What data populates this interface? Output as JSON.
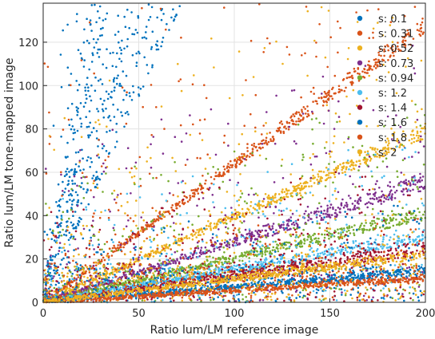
{
  "chart_data": {
    "type": "scatter",
    "xlabel": "Ratio lum/LM reference image",
    "ylabel": "Ratio lum/LM tone-mapped image",
    "xlim": [
      0,
      200
    ],
    "ylim": [
      0,
      138
    ],
    "xticks": [
      0,
      50,
      100,
      150,
      200
    ],
    "yticks": [
      0,
      20,
      40,
      60,
      80,
      100,
      120
    ],
    "grid": true,
    "legend_placement": "top-right",
    "series": [
      {
        "name": "s: 0.1",
        "color": "#0072BD",
        "slope_range": [
          1.9,
          6.0
        ],
        "trend_y_at_x200": 138
      },
      {
        "name": "s: 0.31",
        "color": "#D95319",
        "slope_range": [
          0.62,
          0.66
        ],
        "trend_y_at_x200": 130
      },
      {
        "name": "s: 0.52",
        "color": "#EDB120",
        "slope_range": [
          0.38,
          0.41
        ],
        "trend_y_at_x200": 80
      },
      {
        "name": "s: 0.73",
        "color": "#7E2F8E",
        "slope_range": [
          0.26,
          0.3
        ],
        "trend_y_at_x200": 56
      },
      {
        "name": "s: 0.94",
        "color": "#77AC30",
        "slope_range": [
          0.19,
          0.22
        ],
        "trend_y_at_x200": 42
      },
      {
        "name": "s: 1.2",
        "color": "#4DBEEE",
        "slope_range": [
          0.14,
          0.17
        ],
        "trend_y_at_x200": 32
      },
      {
        "name": "s: 1.4",
        "color": "#A2142F",
        "slope_range": [
          0.11,
          0.14
        ],
        "trend_y_at_x200": 26
      },
      {
        "name": "s: 1.6",
        "color": "#0072BD",
        "slope_range": [
          0.065,
          0.08
        ],
        "trend_y_at_x200": 15
      },
      {
        "name": "s: 1.8",
        "color": "#D95319",
        "slope_range": [
          0.05,
          0.06
        ],
        "trend_y_at_x200": 11
      },
      {
        "name": "s: 2",
        "color": "#EDB120",
        "slope_range": [
          0.1,
          0.12
        ],
        "trend_y_at_x200": 23
      }
    ]
  }
}
